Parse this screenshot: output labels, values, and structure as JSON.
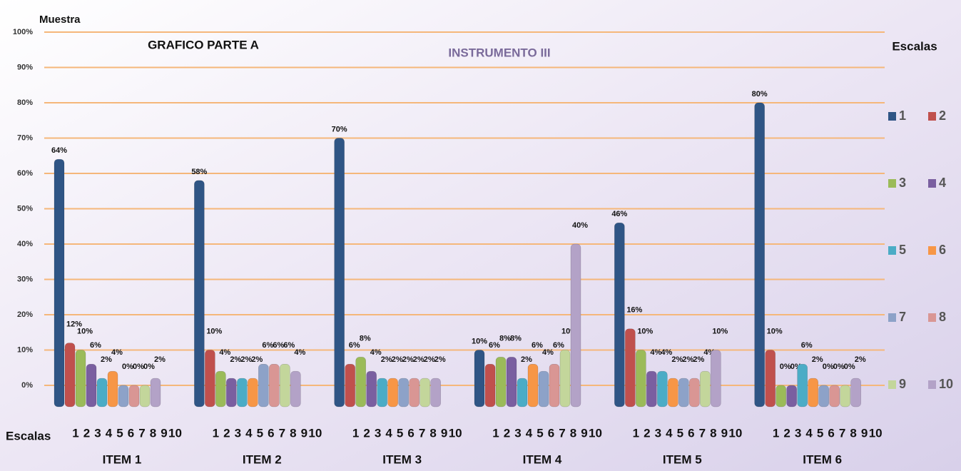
{
  "chart_data": {
    "type": "bar",
    "title": "INSTRUMENTO III",
    "subtitle": "GRAFICO PARTE A",
    "y_label": "Muestra",
    "x_label": "Escalas",
    "legend_title": "Escalas",
    "categories": [
      "ITEM 1",
      "ITEM 2",
      "ITEM 3",
      "ITEM 4",
      "ITEM 5",
      "ITEM 6"
    ],
    "series": [
      {
        "name": "1",
        "color": "#2f5585",
        "values": [
          64,
          58,
          70,
          10,
          46,
          80
        ],
        "value_labels": [
          "64%",
          "58%",
          "70%",
          "10%",
          "46%",
          "80%"
        ]
      },
      {
        "name": "2",
        "color": "#c0504d",
        "values": [
          12,
          10,
          6,
          6,
          16,
          10
        ],
        "value_labels": [
          "12%",
          "10%",
          "6%",
          "6%",
          "16%",
          "10%"
        ]
      },
      {
        "name": "3",
        "color": "#9bbb59",
        "values": [
          10,
          4,
          8,
          8,
          10,
          0
        ],
        "value_labels": [
          "10%",
          "4%",
          "8%",
          "8%",
          "10%",
          "0%"
        ]
      },
      {
        "name": "4",
        "color": "#7a5fa0",
        "values": [
          6,
          2,
          4,
          8,
          4,
          0
        ],
        "value_labels": [
          "6%",
          "2%",
          "4%",
          "8%",
          "4%",
          "0%"
        ]
      },
      {
        "name": "5",
        "color": "#4bacc6",
        "values": [
          2,
          2,
          2,
          2,
          4,
          6
        ],
        "value_labels": [
          "2%",
          "2%",
          "2%",
          "2%",
          "4%",
          "6%"
        ]
      },
      {
        "name": "6",
        "color": "#f79646",
        "values": [
          4,
          2,
          2,
          6,
          2,
          2
        ],
        "value_labels": [
          "4%",
          "2%",
          "2%",
          "6%",
          "2%",
          "2%"
        ]
      },
      {
        "name": "7",
        "color": "#8da2c8",
        "values": [
          0,
          6,
          2,
          4,
          2,
          0
        ],
        "value_labels": [
          "0%",
          "6%",
          "2%",
          "4%",
          "2%",
          "0%"
        ]
      },
      {
        "name": "8",
        "color": "#d99694",
        "values": [
          0,
          6,
          2,
          6,
          2,
          0
        ],
        "value_labels": [
          "0%",
          "6%",
          "2%",
          "6%",
          "2%",
          "0%"
        ]
      },
      {
        "name": "9",
        "color": "#c3d69b",
        "values": [
          0,
          6,
          2,
          10,
          4,
          0
        ],
        "value_labels": [
          "0%",
          "6%",
          "2%",
          "10%",
          "4%",
          "0%"
        ]
      },
      {
        "name": "10",
        "color": "#b3a2c7",
        "values": [
          2,
          4,
          2,
          40,
          10,
          2
        ],
        "value_labels": [
          "2%",
          "4%",
          "2%",
          "40%",
          "10%",
          "2%"
        ]
      }
    ],
    "ylim": [
      0,
      100
    ],
    "yticks": [
      {
        "value": 0,
        "label": "0%"
      },
      {
        "value": 10,
        "label": "10%"
      },
      {
        "value": 20,
        "label": "20%"
      },
      {
        "value": 30,
        "label": "30%"
      },
      {
        "value": 40,
        "label": "40%"
      },
      {
        "value": 50,
        "label": "50%"
      },
      {
        "value": 60,
        "label": "60%"
      },
      {
        "value": 70,
        "label": "70%"
      },
      {
        "value": 80,
        "label": "80%"
      },
      {
        "value": 90,
        "label": "90%"
      },
      {
        "value": 100,
        "label": "100%"
      }
    ],
    "grid": true,
    "legend": "right"
  }
}
